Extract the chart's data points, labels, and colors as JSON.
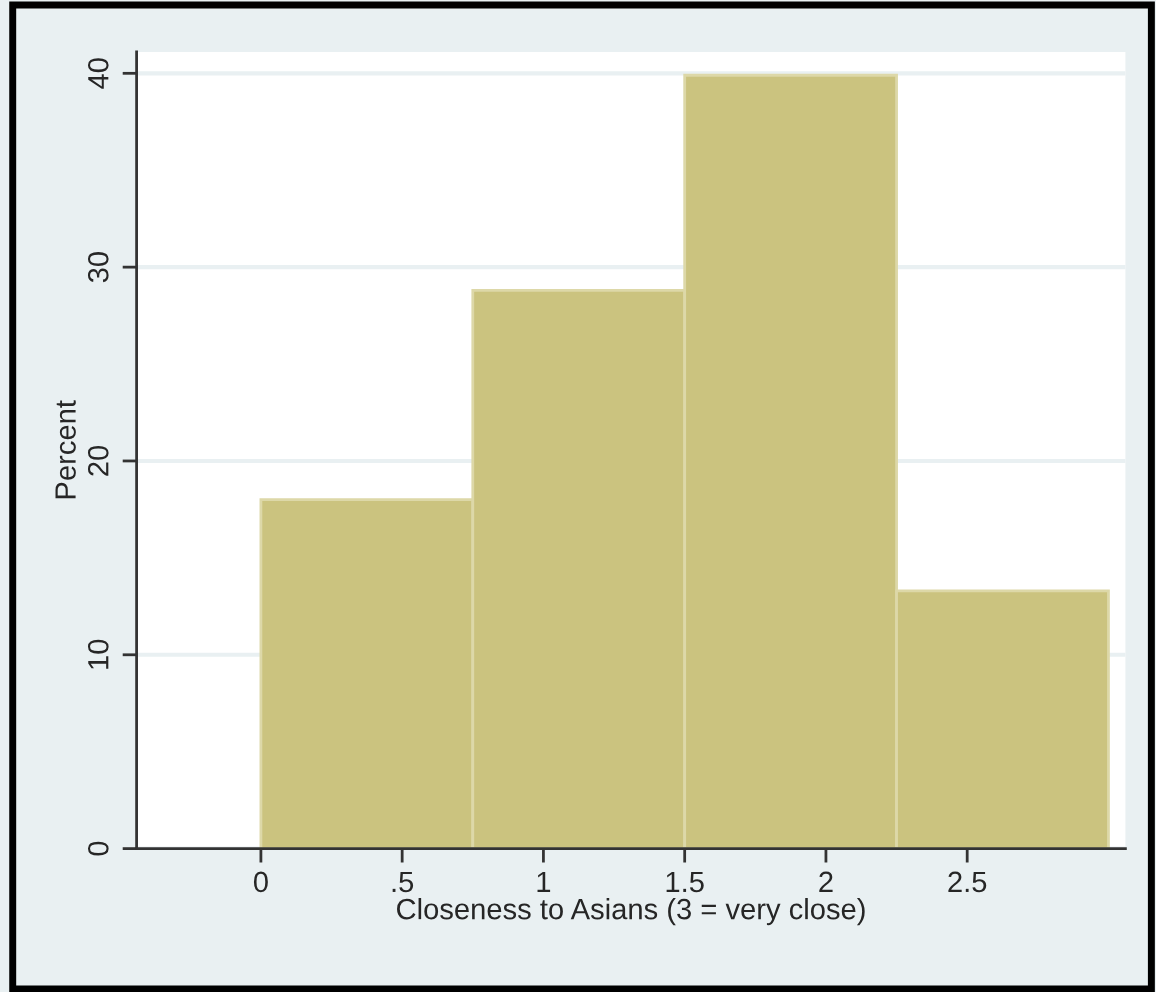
{
  "chart_data": {
    "type": "histogram",
    "xlabel": "Closeness to Asians (3 = very close)",
    "ylabel": "Percent",
    "bins": [
      0,
      0.75,
      1.5,
      2.25,
      3
    ],
    "values": [
      18.0,
      28.8,
      39.9,
      13.3
    ],
    "color": "#cbc37f",
    "xlim": [
      -0.44,
      3.06
    ],
    "ylim": [
      0,
      41.1
    ],
    "xticks": [
      0,
      {
        "value": 0.5,
        "label": ".5"
      },
      1,
      1.5,
      2,
      2.5
    ],
    "yticks": [
      0,
      10,
      20,
      30,
      40
    ],
    "grid": "y"
  }
}
